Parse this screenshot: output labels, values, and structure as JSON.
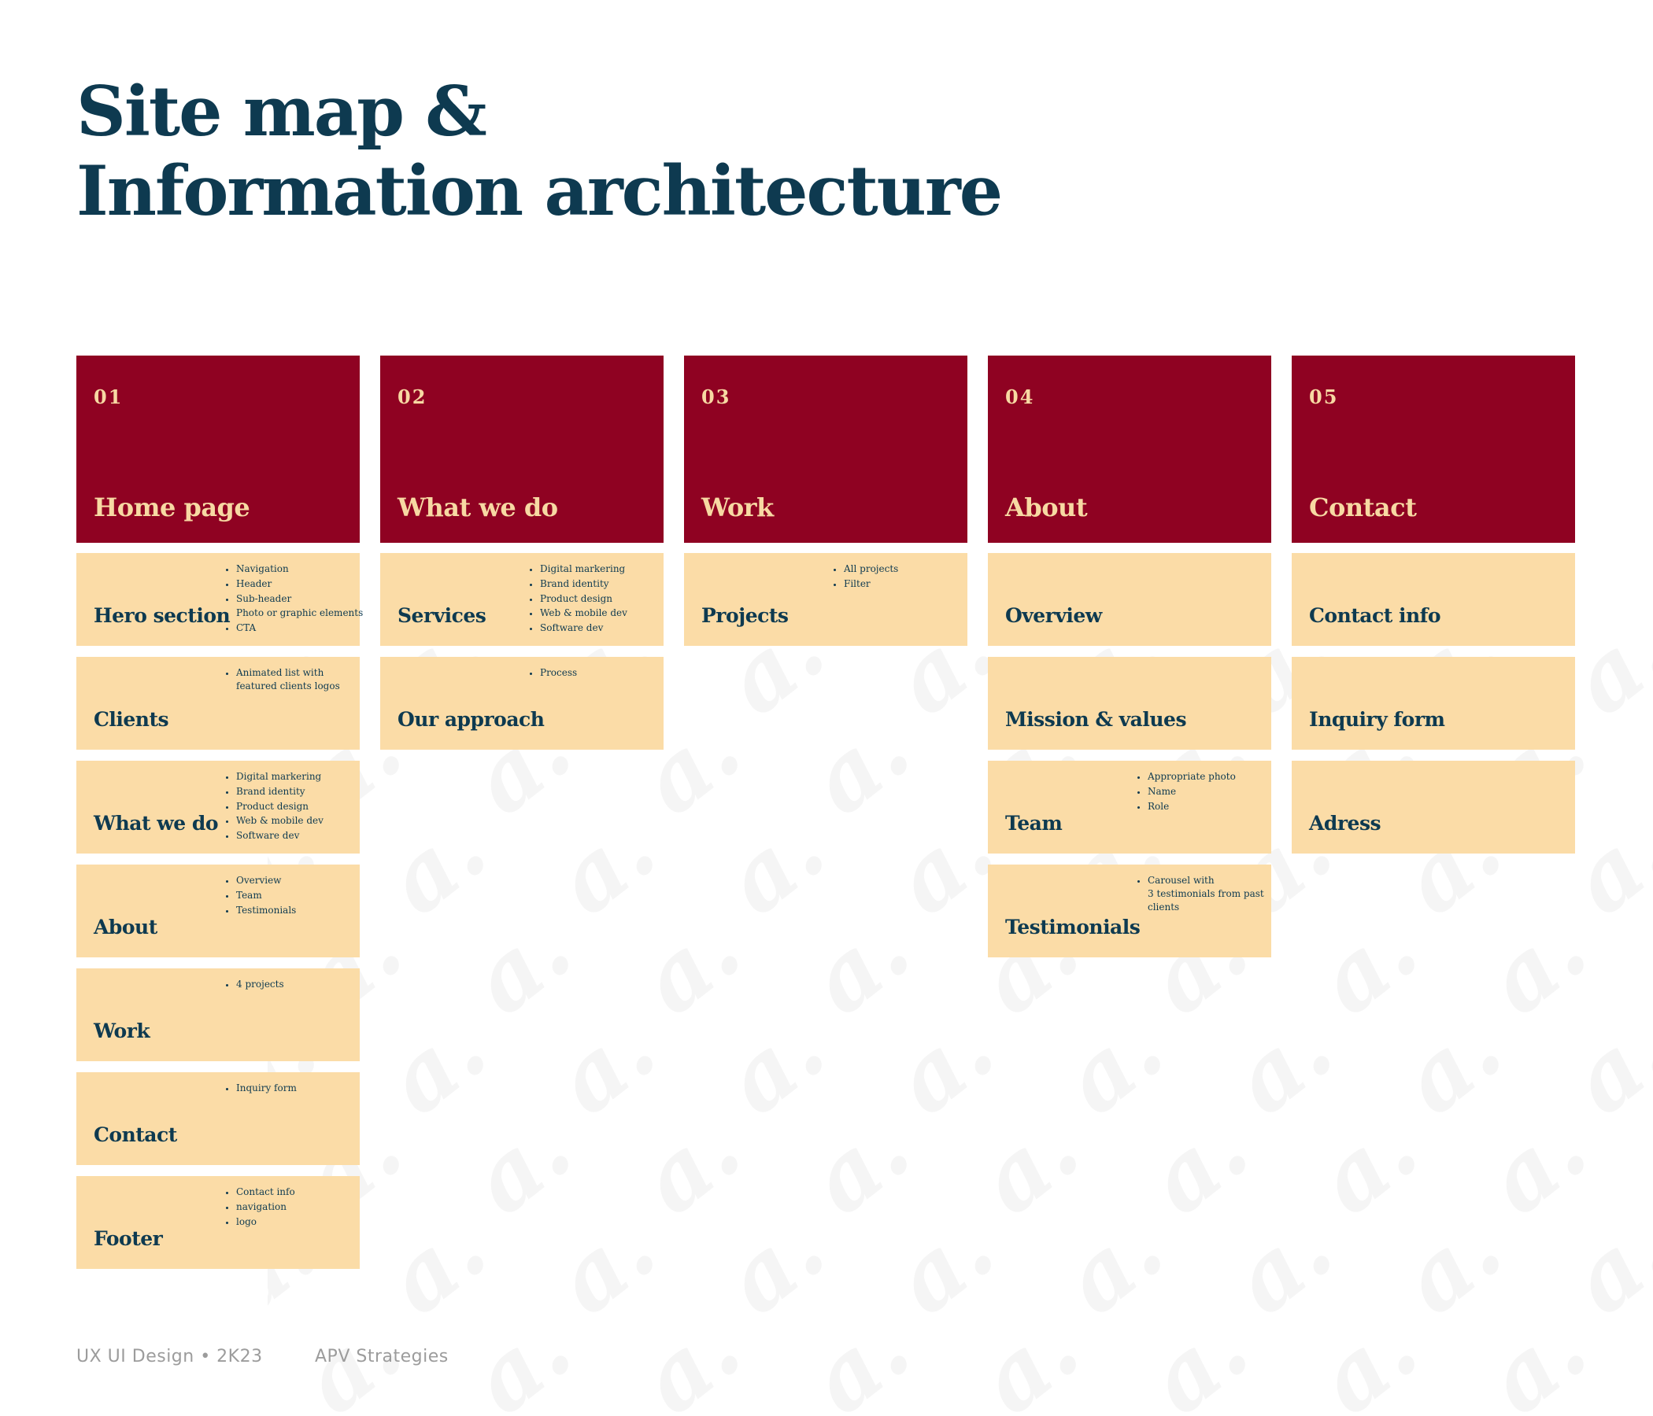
{
  "page": {
    "title_line1": "Site map &",
    "title_line2": "Information architecture"
  },
  "colors": {
    "navy": "#0E3A50",
    "red": "#8F0222",
    "cream": "#FBDCA7",
    "cream_text": "#F7D9A3",
    "footer_gray": "#9C9C9C",
    "pattern_gray": "#F5F5F5"
  },
  "columns": [
    {
      "number": "01",
      "title": "Home page",
      "cards": [
        {
          "title": "Hero section",
          "bullets": [
            "Navigation",
            "Header",
            "Sub-header",
            "Photo or graphic elements",
            "CTA"
          ]
        },
        {
          "title": "Clients",
          "bullets": [
            "Animated list with\nfeatured clients logos"
          ]
        },
        {
          "title": "What we do",
          "bullets": [
            "Digital markering",
            "Brand identity",
            "Product design",
            "Web & mobile dev",
            "Software dev"
          ]
        },
        {
          "title": "About",
          "bullets": [
            "Overview",
            "Team",
            "Testimonials"
          ]
        },
        {
          "title": "Work",
          "bullets": [
            "4 projects"
          ]
        },
        {
          "title": "Contact",
          "bullets": [
            "Inquiry form"
          ]
        },
        {
          "title": "Footer",
          "bullets": [
            "Contact info",
            "navigation",
            "logo"
          ]
        }
      ]
    },
    {
      "number": "02",
      "title": "What we do",
      "cards": [
        {
          "title": "Services",
          "bullets": [
            "Digital markering",
            "Brand identity",
            "Product design",
            "Web & mobile dev",
            "Software dev"
          ]
        },
        {
          "title": "Our approach",
          "bullets": [
            "Process"
          ]
        }
      ]
    },
    {
      "number": "03",
      "title": "Work",
      "cards": [
        {
          "title": "Projects",
          "bullets": [
            "All projects",
            "Filter"
          ]
        }
      ]
    },
    {
      "number": "04",
      "title": "About",
      "cards": [
        {
          "title": "Overview",
          "bullets": []
        },
        {
          "title": "Mission & values",
          "bullets": []
        },
        {
          "title": "Team",
          "bullets": [
            "Appropriate photo",
            "Name",
            "Role"
          ]
        },
        {
          "title": "Testimonials",
          "bullets": [
            "Carousel with\n3 testimonials from past\nclients"
          ]
        }
      ]
    },
    {
      "number": "05",
      "title": "Contact",
      "cards": [
        {
          "title": "Contact info",
          "bullets": []
        },
        {
          "title": "Inquiry form",
          "bullets": []
        },
        {
          "title": "Adress",
          "bullets": []
        }
      ]
    }
  ],
  "footer": {
    "left": "UX UI Design • 2K23",
    "right": "APV Strategies"
  },
  "background": {
    "pattern_glyph": "a."
  }
}
